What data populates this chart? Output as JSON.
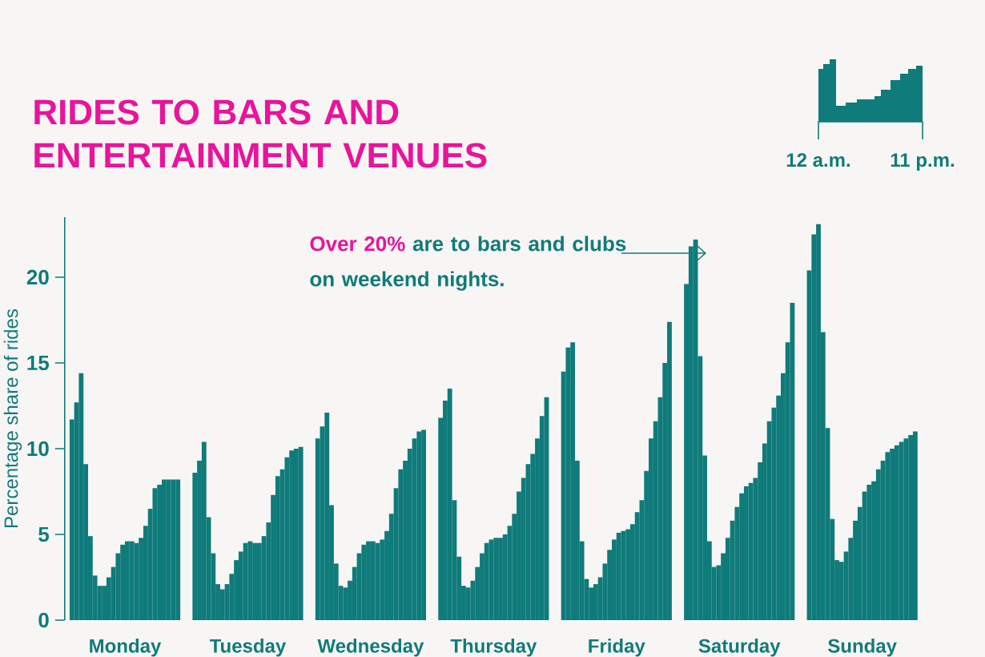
{
  "chart_data": {
    "type": "bar",
    "title": "RIDES TO BARS AND ENTERTAINMENT VENUES",
    "ylabel": "Percentage share of rides",
    "categories": [
      "Monday",
      "Tuesday",
      "Wednesday",
      "Thursday",
      "Friday",
      "Saturday",
      "Sunday"
    ],
    "ylim": [
      0,
      23.5
    ],
    "yticks": [
      0,
      5,
      10,
      15,
      20
    ],
    "annotations": [
      "Over 20%",
      "are to bars and clubs on weekend nights.",
      "12 a.m.",
      "11 p.m."
    ],
    "series": [
      {
        "color": "#0f7b7a",
        "values": [
          11.7,
          8.6,
          10.6,
          11.8,
          14.5,
          19.6,
          20.4
        ]
      },
      {
        "color": "#0f7b7a",
        "values": [
          12.7,
          9.3,
          11.3,
          12.8,
          15.9,
          21.8,
          22.5
        ]
      },
      {
        "color": "#0f7b7a",
        "values": [
          14.4,
          10.4,
          12.1,
          13.5,
          16.2,
          22.2,
          23.1
        ]
      },
      {
        "color": "#0f7b7a",
        "values": [
          9.1,
          6.0,
          6.7,
          7.0,
          9.3,
          15.4,
          16.8
        ]
      },
      {
        "color": "#0f7b7a",
        "values": [
          4.9,
          3.9,
          3.3,
          3.7,
          4.6,
          9.6,
          11.2
        ]
      },
      {
        "color": "#0f7b7a",
        "values": [
          2.6,
          2.1,
          2.0,
          2.0,
          2.4,
          4.6,
          5.9
        ]
      },
      {
        "color": "#0f7b7a",
        "values": [
          2.0,
          1.8,
          1.9,
          1.9,
          1.9,
          3.1,
          3.5
        ]
      },
      {
        "color": "#0f7b7a",
        "values": [
          2.0,
          2.1,
          2.3,
          2.3,
          2.1,
          3.2,
          3.4
        ]
      },
      {
        "color": "#0f7b7a",
        "values": [
          2.5,
          2.7,
          3.1,
          3.1,
          2.5,
          3.9,
          4.0
        ]
      },
      {
        "color": "#0f7b7a",
        "values": [
          3.1,
          3.5,
          3.9,
          3.9,
          3.3,
          4.8,
          4.8
        ]
      },
      {
        "color": "#0f7b7a",
        "values": [
          3.9,
          4.0,
          4.4,
          4.5,
          4.1,
          5.8,
          5.8
        ]
      },
      {
        "color": "#0f7b7a",
        "values": [
          4.4,
          4.5,
          4.6,
          4.7,
          4.7,
          6.6,
          6.6
        ]
      },
      {
        "color": "#0f7b7a",
        "values": [
          4.6,
          4.6,
          4.6,
          4.8,
          5.1,
          7.4,
          7.5
        ]
      },
      {
        "color": "#0f7b7a",
        "values": [
          4.6,
          4.5,
          4.5,
          4.8,
          5.2,
          7.8,
          7.9
        ]
      },
      {
        "color": "#0f7b7a",
        "values": [
          4.5,
          4.5,
          4.7,
          5.0,
          5.3,
          8.0,
          8.1
        ]
      },
      {
        "color": "#0f7b7a",
        "values": [
          4.8,
          4.9,
          5.2,
          5.5,
          5.6,
          8.3,
          8.8
        ]
      },
      {
        "color": "#0f7b7a",
        "values": [
          5.5,
          5.7,
          6.2,
          6.2,
          6.3,
          9.2,
          9.3
        ]
      },
      {
        "color": "#0f7b7a",
        "values": [
          6.5,
          7.3,
          7.7,
          7.5,
          7.0,
          10.3,
          9.8
        ]
      },
      {
        "color": "#0f7b7a",
        "values": [
          7.7,
          8.4,
          8.8,
          8.3,
          8.7,
          11.6,
          10.0
        ]
      },
      {
        "color": "#0f7b7a",
        "values": [
          7.9,
          8.8,
          9.3,
          9.1,
          10.6,
          12.4,
          10.2
        ]
      },
      {
        "color": "#0f7b7a",
        "values": [
          8.2,
          9.5,
          10.0,
          9.7,
          11.6,
          13.1,
          10.4
        ]
      },
      {
        "color": "#0f7b7a",
        "values": [
          8.2,
          9.9,
          10.6,
          10.6,
          13.0,
          14.4,
          10.6
        ]
      },
      {
        "color": "#0f7b7a",
        "values": [
          8.2,
          10.0,
          11.0,
          11.9,
          15.0,
          16.2,
          10.8
        ]
      },
      {
        "color": "#0f7b7a",
        "values": [
          8.2,
          10.1,
          11.1,
          13.0,
          17.4,
          18.5,
          11.0
        ]
      }
    ]
  }
}
